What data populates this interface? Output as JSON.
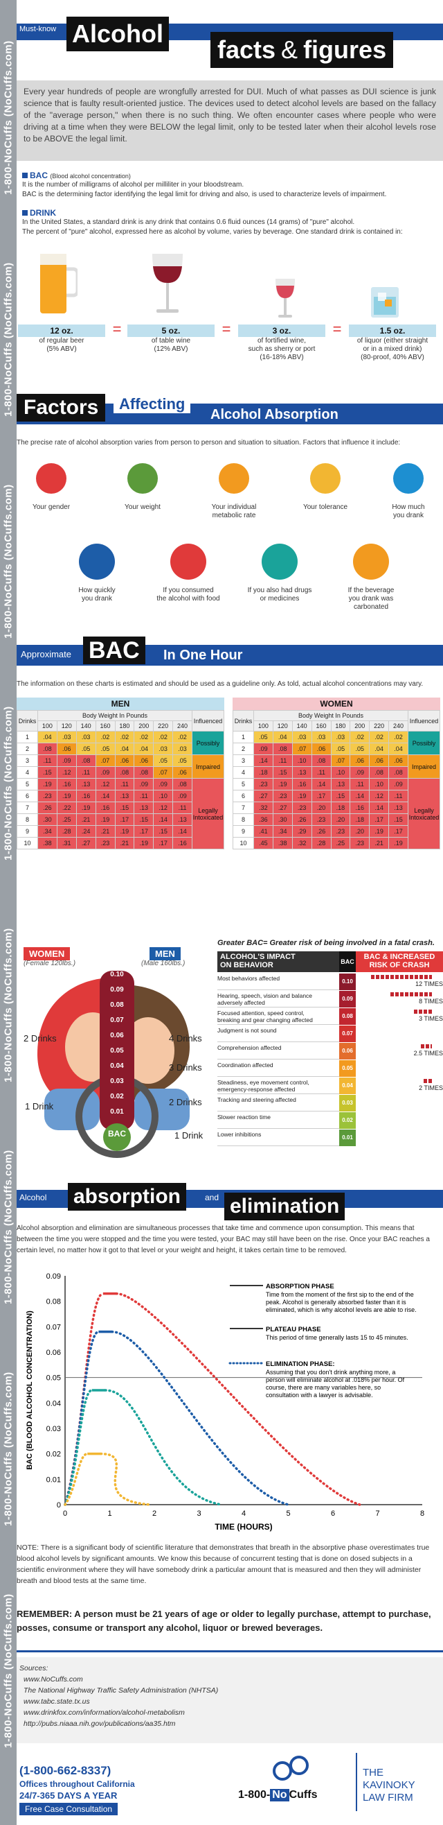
{
  "sidebar": {
    "phone": "1-800-NoCuffs (NoCuffs.com)"
  },
  "header": {
    "badge": "Must-know",
    "title1": "Alcohol",
    "title2a": "facts",
    "amp": "&",
    "title2b": "figures"
  },
  "intro": "Every year hundreds of people are wrongfully arrested for DUI. Much of what passes as DUI science is junk science that is faulty result-oriented justice. The devices used to detect alcohol levels are based on the fallacy of the \"average person,\" when there is no such thing. We often encounter cases where people who were driving at a time when they were BELOW the legal limit, only to be tested later when their alcohol levels rose to be ABOVE the legal limit.",
  "bac_def": {
    "term": "BAC",
    "paren": "(Blood alcohol concentration)",
    "line1": "It is the number of milligrams of alcohol per milliliter in your bloodstream.",
    "line2": "BAC is the determining factor identifying the legal limit for driving and also, is used to characterize levels of impairment."
  },
  "drink_def": {
    "term": "DRINK",
    "line1": "In the United States, a standard drink is any drink that contains 0.6 fluid ounces (14 grams) of \"pure\" alcohol.",
    "line2": "The percent of \"pure\" alcohol, expressed here as alcohol by volume, varies by beverage. One standard drink is contained in:"
  },
  "drinks": [
    {
      "oz": "12 oz.",
      "desc": "of regular beer",
      "desc2": "(5% ABV)",
      "desc3": ""
    },
    {
      "oz": "5 oz.",
      "desc": "of table wine",
      "desc2": "(12% ABV)",
      "desc3": ""
    },
    {
      "oz": "3 oz.",
      "desc": "of fortified wine,",
      "desc2": "such as sherry or port",
      "desc3": "(16-18% ABV)"
    },
    {
      "oz": "1.5 oz.",
      "desc": "of liquor (either straight",
      "desc2": "or in a mixed drink)",
      "desc3": "(80-proof, 40% ABV)"
    }
  ],
  "eq": "=",
  "factors": {
    "t1": "Factors",
    "t2": "Affecting",
    "t3": "Alcohol Absorption",
    "intro": "The precise rate of alcohol absorption varies from person to person and situation to situation. Factors that influence it include:",
    "items": [
      "Your gender",
      "Your weight",
      "Your individual",
      "Your tolerance",
      "How much",
      "How quickly",
      "If you consumed",
      "If you also had drugs",
      "If the beverage"
    ],
    "items2": [
      "",
      "",
      "metabolic rate",
      "",
      "you drank",
      "you drank",
      "the alcohol with food",
      "or medicines",
      "you drank was"
    ],
    "items3": [
      "",
      "",
      "",
      "",
      "",
      "",
      "",
      "",
      "carbonated"
    ]
  },
  "bac_hour": {
    "t1": "Approximate",
    "t2": "BAC",
    "t3": "In One Hour",
    "note": "The information on these charts is estimated and should be used as a guideline only. As told, actual alcohol concentrations may vary."
  },
  "tables": {
    "men": "MEN",
    "women": "WOMEN",
    "bw": "Body Weight In Pounds",
    "drinks": "Drinks",
    "influenced": "Influenced",
    "weights": [
      "100",
      "120",
      "140",
      "160",
      "180",
      "200",
      "220",
      "240"
    ],
    "possibly": "Possibly",
    "impaired": "Impaired",
    "legally": "Legally",
    "intoxicated": "Intoxicated",
    "men_rows": [
      [
        "1",
        ".04",
        ".03",
        ".03",
        ".02",
        ".02",
        ".02",
        ".02",
        ".02"
      ],
      [
        "2",
        ".08",
        ".06",
        ".05",
        ".05",
        ".04",
        ".04",
        ".03",
        ".03"
      ],
      [
        "3",
        ".11",
        ".09",
        ".08",
        ".07",
        ".06",
        ".06",
        ".05",
        ".05"
      ],
      [
        "4",
        ".15",
        ".12",
        ".11",
        ".09",
        ".08",
        ".08",
        ".07",
        ".06"
      ],
      [
        "5",
        ".19",
        ".16",
        ".13",
        ".12",
        ".11",
        ".09",
        ".09",
        ".08"
      ],
      [
        "6",
        ".23",
        ".19",
        ".16",
        ".14",
        ".13",
        ".11",
        ".10",
        ".09"
      ],
      [
        "7",
        ".26",
        ".22",
        ".19",
        ".16",
        ".15",
        ".13",
        ".12",
        ".11"
      ],
      [
        "8",
        ".30",
        ".25",
        ".21",
        ".19",
        ".17",
        ".15",
        ".14",
        ".13"
      ],
      [
        "9",
        ".34",
        ".28",
        ".24",
        ".21",
        ".19",
        ".17",
        ".15",
        ".14"
      ],
      [
        "10",
        ".38",
        ".31",
        ".27",
        ".23",
        ".21",
        ".19",
        ".17",
        ".16"
      ]
    ],
    "women_rows": [
      [
        "1",
        ".05",
        ".04",
        ".03",
        ".03",
        ".03",
        ".02",
        ".02",
        ".02"
      ],
      [
        "2",
        ".09",
        ".08",
        ".07",
        ".06",
        ".05",
        ".05",
        ".04",
        ".04"
      ],
      [
        "3",
        ".14",
        ".11",
        ".10",
        ".08",
        ".07",
        ".06",
        ".06",
        ".06"
      ],
      [
        "4",
        ".18",
        ".15",
        ".13",
        ".11",
        ".10",
        ".09",
        ".08",
        ".08"
      ],
      [
        "5",
        ".23",
        ".19",
        ".16",
        ".14",
        ".13",
        ".11",
        ".10",
        ".09"
      ],
      [
        "6",
        ".27",
        ".23",
        ".19",
        ".17",
        ".15",
        ".14",
        ".12",
        ".11"
      ],
      [
        "7",
        ".32",
        ".27",
        ".23",
        ".20",
        ".18",
        ".16",
        ".14",
        ".13"
      ],
      [
        "8",
        ".36",
        ".30",
        ".26",
        ".23",
        ".20",
        ".18",
        ".17",
        ".15"
      ],
      [
        "9",
        ".41",
        ".34",
        ".29",
        ".26",
        ".23",
        ".20",
        ".19",
        ".17"
      ],
      [
        "10",
        ".45",
        ".38",
        ".32",
        ".28",
        ".25",
        ".23",
        ".21",
        ".19"
      ]
    ]
  },
  "impact": {
    "greater": "Greater BAC= Greater risk of being involved in a fatal crash.",
    "women": "WOMEN",
    "women_sub": "(Female 120lbs.)",
    "men": "MEN",
    "men_sub": "(Male 160lbs.)",
    "bac": "BAC",
    "left_labels": [
      "2 Drinks",
      "1 Drink"
    ],
    "right_labels": [
      "4 Drinks",
      "3 Drinks",
      "2 Drinks",
      "1 Drink"
    ],
    "gauge": [
      "0.10",
      "0.09",
      "0.08",
      "0.07",
      "0.06",
      "0.05",
      "0.04",
      "0.03",
      "0.02",
      "0.01"
    ],
    "h1": "ALCOHOL'S IMPACT",
    "h1b": "ON BEHAVIOR",
    "h2": "BAC",
    "h3": "BAC & INCREASED",
    "h3b": "RISK OF CRASH",
    "rows": [
      {
        "t": "Most behaviors affected",
        "t2": "",
        "v": "0.10"
      },
      {
        "t": "Hearing, speech, vision and balance",
        "t2": "adversely affected",
        "v": "0.09"
      },
      {
        "t": "Focused attention, speed control,",
        "t2": "breaking and gear changing affected",
        "v": "0.08"
      },
      {
        "t": "Judgment is not sound",
        "t2": "",
        "v": "0.07"
      },
      {
        "t": "Comprehension affected",
        "t2": "",
        "v": "0.06"
      },
      {
        "t": "Coordination affected",
        "t2": "",
        "v": "0.05"
      },
      {
        "t": "Steadiness, eye movement control,",
        "t2": "emergency-response affected",
        "v": "0.04"
      },
      {
        "t": "Tracking and steering affected",
        "t2": "",
        "v": "0.03"
      },
      {
        "t": "Slower reaction time",
        "t2": "",
        "v": "0.02"
      },
      {
        "t": "Lower inhibitions",
        "t2": "",
        "v": "0.01"
      }
    ],
    "risks": [
      "12 TIMES",
      "8 TIMES",
      "3 TIMES",
      "2.5 TIMES",
      "2 TIMES"
    ]
  },
  "absorb": {
    "t1": "Alcohol",
    "t2": "absorption",
    "t3": "and",
    "t4": "elimination",
    "text": "Alcohol absorption and elimination are simultaneous processes that take time and commence upon consumption. This means that between the time you were stopped and the time you were tested, your BAC may still have been on the rise. Once your BAC reaches a certain level, no matter how it got to that level or your weight and height, it takes certain time to be removed."
  },
  "chart_data": {
    "type": "line",
    "xlabel": "TIME (HOURS)",
    "ylabel": "BAC (BLOOD ALCOHOL CONCENTRATION)",
    "xlim": [
      0,
      8
    ],
    "ylim": [
      0,
      0.09
    ],
    "xticks": [
      "0",
      "1",
      "2",
      "3",
      "4",
      "5",
      "6",
      "7",
      "8"
    ],
    "yticks": [
      "0",
      "0.01",
      "0.02",
      "0.03",
      "0.04",
      "0.05",
      "0.06",
      "0.07",
      "0.08",
      "0.09"
    ],
    "series": [
      {
        "color": "#e03a3a",
        "peak": [
          0.85,
          0.083
        ],
        "end": 6.6
      },
      {
        "color": "#1d5da8",
        "peak": [
          0.75,
          0.068
        ],
        "end": 5.0
      },
      {
        "color": "#1aa39a",
        "peak": [
          0.6,
          0.045
        ],
        "end": 3.5
      },
      {
        "color": "#f2b632",
        "peak": [
          0.5,
          0.02
        ],
        "end": 1.9
      }
    ],
    "legal_line": 0.05,
    "legend": [
      {
        "title": "ABSORPTION PHASE",
        "text": [
          "Time from the moment of the first sip to the end of the",
          "peak. Alcohol is generally absorbed faster than it is",
          "eliminated, which is why alcohol levels are able to rise."
        ]
      },
      {
        "title": "PLATEAU PHASE",
        "text": [
          "This period of time generally lasts 15 to 45 minutes."
        ]
      },
      {
        "title": "ELIMINATION PHASE:",
        "text": [
          "Assuming that you don't drink anything more, a",
          "person will eliminate alcohol at .018% per hour. Of",
          "course, there are many variables here, so",
          "consultation with a lawyer is advisable."
        ]
      }
    ]
  },
  "note": "NOTE: There is a significant body of scientific literature that demonstrates that breath in the absorptive phase overestimates true blood alcohol levels by significant amounts. We know this because of concurrent testing that is done on dosed subjects in a scientific environment where they will have somebody drink a particular amount that is measured and then they will administer breath and blood tests at the same time.",
  "remember": "REMEMBER: A person must be 21 years of age or older to legally purchase, attempt to purchase, posses, consume or transport any alcohol, liquor or brewed beverages.",
  "sources": {
    "title": "Sources:",
    "items": [
      "www.NoCuffs.com",
      "The National Highway Traffic Safety Administration (NHTSA)",
      "www.tabc.state.tx.us",
      "www.drinkfox.com/information/alcohol-metabolism",
      "http://pubs.niaaa.nih.gov/publications/aa35.htm"
    ]
  },
  "footer": {
    "phone": "(1-800-662-8337)",
    "offices": "Offices throughout California",
    "days": "24/7-365 DAYS A YEAR",
    "free": "Free Case Consultation",
    "logo1": "1-800-",
    "logo2": "No",
    "logo3": "Cuffs",
    "firm1": "THE",
    "firm2": "KAVINOKY",
    "firm3": "LAW FIRM"
  }
}
